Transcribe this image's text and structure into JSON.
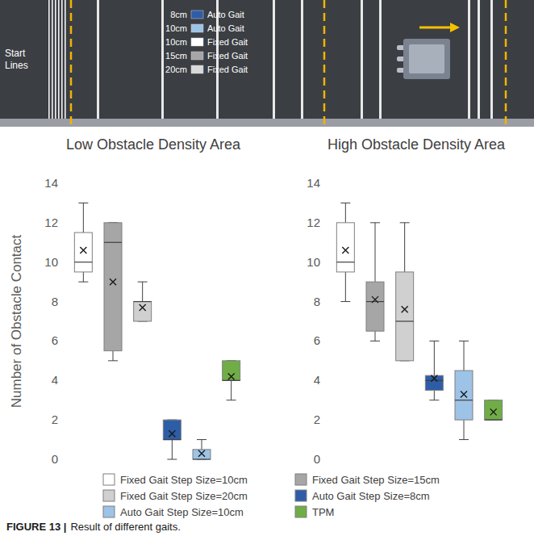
{
  "figure": {
    "track": {
      "start_label": "Start Lines",
      "legend": [
        {
          "size": "8cm",
          "label": "Auto Gait",
          "color": "#2e5da8"
        },
        {
          "size": "10cm",
          "label": "Auto Gait",
          "color": "#9dc3e6"
        },
        {
          "size": "10cm",
          "label": "Fixed Gait",
          "color": "#ffffff"
        },
        {
          "size": "15cm",
          "label": "Fixed Gait",
          "color": "#a6a6a6"
        },
        {
          "size": "20cm",
          "label": "Fixed Gait",
          "color": "#d9d9d9"
        }
      ]
    },
    "caption_label": "FIGURE 13 |",
    "caption": "Result of different gaits."
  },
  "chart_data": {
    "type": "box",
    "categories": [
      "Low Obstacle Density Area",
      "High Obstacle Density Area"
    ],
    "y_label": "Number of Obstacle Contact",
    "ylim": [
      0,
      14
    ],
    "yticks": [
      0,
      2,
      4,
      6,
      8,
      10,
      12,
      14
    ],
    "grid": false,
    "legend": "bottom",
    "series": [
      {
        "name": "Fixed Gait Step Size=10cm",
        "color": "#ffffff",
        "min": [
          9,
          8
        ],
        "q1": [
          9.5,
          9.5
        ],
        "median": [
          10,
          10
        ],
        "q3": [
          11.5,
          12
        ],
        "max": [
          13,
          13
        ],
        "mean": [
          10.6,
          10.6
        ]
      },
      {
        "name": "Fixed Gait Step Size=15cm",
        "color": "#a6a6a6",
        "min": [
          5,
          6
        ],
        "q1": [
          5.5,
          6.5
        ],
        "median": [
          11,
          8
        ],
        "q3": [
          12,
          9
        ],
        "max": [
          12,
          12
        ],
        "mean": [
          9,
          8.1
        ]
      },
      {
        "name": "Fixed Gait Step Size=20cm",
        "color": "#d0d0d0",
        "min": [
          7,
          5
        ],
        "q1": [
          7,
          5
        ],
        "median": [
          8,
          7
        ],
        "q3": [
          8,
          9.5
        ],
        "max": [
          9,
          12
        ],
        "mean": [
          7.7,
          7.6
        ]
      },
      {
        "name": "Auto Gait Step Size=8cm",
        "color": "#2e5da8",
        "min": [
          0,
          3
        ],
        "q1": [
          1,
          3.5
        ],
        "median": [
          1,
          4
        ],
        "q3": [
          2,
          4.25
        ],
        "max": [
          2,
          6
        ],
        "mean": [
          1.3,
          4.1
        ]
      },
      {
        "name": "Auto Gait Step Size=10cm",
        "color": "#9dc3e6",
        "min": [
          0,
          1
        ],
        "q1": [
          0,
          2
        ],
        "median": [
          0,
          3
        ],
        "q3": [
          0.5,
          4.5
        ],
        "max": [
          1,
          6
        ],
        "mean": [
          0.3,
          3.3
        ]
      },
      {
        "name": "TPM",
        "color": "#70ad47",
        "min": [
          3,
          2
        ],
        "q1": [
          4,
          2
        ],
        "median": [
          4,
          2
        ],
        "q3": [
          5,
          3
        ],
        "max": [
          5,
          3
        ],
        "mean": [
          4.2,
          2.4
        ]
      }
    ]
  }
}
